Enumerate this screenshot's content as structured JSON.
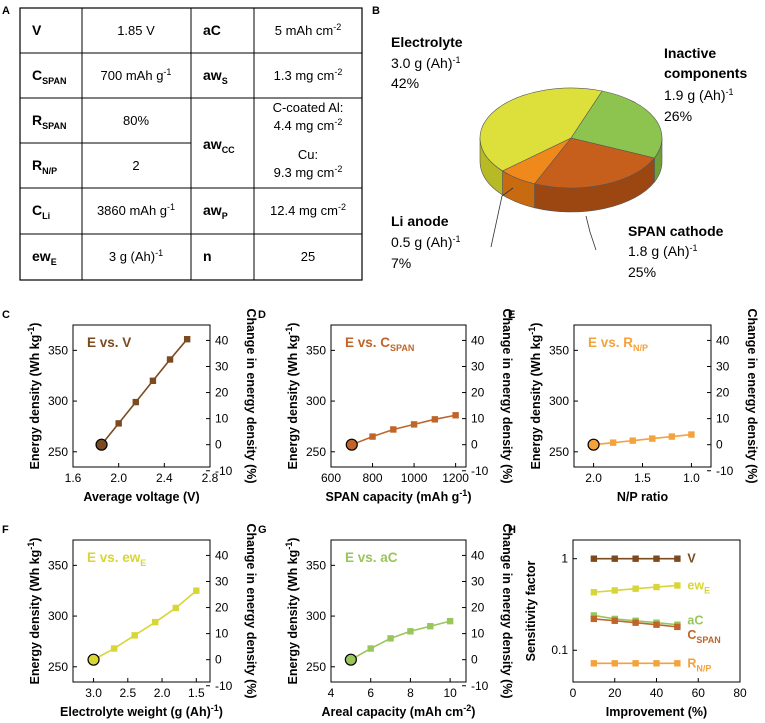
{
  "panel_letters": [
    "A",
    "B",
    "C",
    "D",
    "E",
    "F",
    "G",
    "H"
  ],
  "colors": {
    "V": "#7b4a1e",
    "C_SPAN": "#c0642a",
    "R_NP": "#f4a23c",
    "ew_E": "#d8d636",
    "aC": "#99c65a",
    "dark": "#6b3a14"
  },
  "table": {
    "rows": [
      {
        "p1": "V",
        "s1": "",
        "v1": "1.85 V",
        "p2": "aC",
        "s2": "",
        "v2": "5 mAh cm",
        "v2sup": "-2"
      },
      {
        "p1": "C",
        "s1": "SPAN",
        "v1": "700 mAh g",
        "v1sup": "-1",
        "p2": "aw",
        "s2": "S",
        "v2": "1.3 mg cm",
        "v2sup": "-2"
      },
      {
        "p1": "R",
        "s1": "SPAN",
        "v1": "80%"
      },
      {
        "p1": "R",
        "s1": "N/P",
        "v1": "2"
      },
      {
        "p1": "C",
        "s1": "Li",
        "v1": "3860 mAh g",
        "v1sup": "-1",
        "p2": "aw",
        "s2": "P",
        "v2": "12.4 mg cm",
        "v2sup": "-2"
      },
      {
        "p1": "ew",
        "s1": "E",
        "v1": "3 g (Ah)",
        "v1sup": "-1",
        "p2": "n",
        "s2": "",
        "v2": "25"
      }
    ],
    "awcc": {
      "p": "aw",
      "s": "CC",
      "a1": "C-coated Al:",
      "a2": "4.4 mg cm",
      "a2sup": "-2",
      "b1": "Cu:",
      "b2": "9.3 mg cm",
      "b2sup": "-2"
    }
  },
  "pie": {
    "electrolyte": {
      "name": "Electrolyte",
      "value": "3.0 g (Ah)",
      "sup": "-1",
      "pct": "42%",
      "fraction": 0.42
    },
    "inactive": {
      "name1": "Inactive",
      "name2": "components",
      "value": "1.9 g (Ah)",
      "sup": "-1",
      "pct": "26%",
      "fraction": 0.26
    },
    "span": {
      "name": "SPAN cathode",
      "value": "1.8 g (Ah)",
      "sup": "-1",
      "pct": "25%",
      "fraction": 0.25
    },
    "li": {
      "name": "Li anode",
      "value": "0.5 g (Ah)",
      "sup": "-1",
      "pct": "7%",
      "fraction": 0.07
    }
  },
  "chart_data": [
    {
      "type": "line",
      "panel": "C",
      "title": "E vs. V",
      "xlabel": "Average voltage (V)",
      "ylabel": "Energy density (Wh kg",
      "ylabel_sup": "-1",
      "ylabel_end": ")",
      "y2label": "Change in energy density (%)",
      "x": [
        1.85,
        2.0,
        2.15,
        2.3,
        2.45,
        2.6
      ],
      "y": [
        257,
        278,
        299,
        320,
        341,
        361
      ],
      "xlim": [
        1.6,
        2.8
      ],
      "xticks": [
        "1.6",
        "2.0",
        "2.4",
        "2.8"
      ],
      "xtick_vals": [
        1.6,
        2.0,
        2.4,
        2.8
      ],
      "ylim": [
        235,
        375
      ],
      "yticks": [
        "250",
        "300",
        "350"
      ],
      "ytick_vals": [
        250,
        300,
        350
      ],
      "y2ticks": [
        "-10",
        "0",
        "10",
        "20",
        "30",
        "40"
      ],
      "y2tick_vals": [
        -10,
        0,
        10,
        20,
        30,
        40
      ],
      "color": "#7b4a1e",
      "baseline": {
        "x": 1.85,
        "y": 257
      }
    },
    {
      "type": "line",
      "panel": "D",
      "title": "E vs. C",
      "title_sub": "SPAN",
      "xlabel": "SPAN capacity (mAh g",
      "xlabel_sup": "-1",
      "xlabel_end": ")",
      "ylabel": "Energy density (Wh kg",
      "ylabel_sup": "-1",
      "ylabel_end": ")",
      "y2label": "Change in energy density (%)",
      "x": [
        700,
        800,
        900,
        1000,
        1100,
        1200
      ],
      "y": [
        257,
        265,
        272,
        277,
        282,
        286
      ],
      "xlim": [
        600,
        1250
      ],
      "xticks": [
        "600",
        "800",
        "1000",
        "1200"
      ],
      "xtick_vals": [
        600,
        800,
        1000,
        1200
      ],
      "ylim": [
        235,
        375
      ],
      "yticks": [
        "250",
        "300",
        "350"
      ],
      "ytick_vals": [
        250,
        300,
        350
      ],
      "y2ticks": [
        "-10",
        "0",
        "10",
        "20",
        "30",
        "40"
      ],
      "y2tick_vals": [
        -10,
        0,
        10,
        20,
        30,
        40
      ],
      "color": "#c0642a",
      "baseline": {
        "x": 700,
        "y": 257
      }
    },
    {
      "type": "line",
      "panel": "E",
      "title": "E vs. R",
      "title_sub": "N/P",
      "xlabel": "N/P ratio",
      "ylabel": "Energy density (Wh kg",
      "ylabel_sup": "-1",
      "ylabel_end": ")",
      "y2label": "Change in energy density (%)",
      "x": [
        2.0,
        1.8,
        1.6,
        1.4,
        1.2,
        1.0
      ],
      "y": [
        257,
        259,
        261,
        263,
        265,
        267
      ],
      "xlim": [
        2.2,
        0.8
      ],
      "xticks": [
        "2.0",
        "1.5",
        "1.0"
      ],
      "xtick_vals": [
        2.0,
        1.5,
        1.0
      ],
      "ylim": [
        235,
        375
      ],
      "yticks": [
        "250",
        "300",
        "350"
      ],
      "ytick_vals": [
        250,
        300,
        350
      ],
      "y2ticks": [
        "-10",
        "0",
        "10",
        "20",
        "30",
        "40"
      ],
      "y2tick_vals": [
        -10,
        0,
        10,
        20,
        30,
        40
      ],
      "color": "#f4a23c",
      "baseline": {
        "x": 2.0,
        "y": 257
      }
    },
    {
      "type": "line",
      "panel": "F",
      "title": "E vs. ew",
      "title_sub": "E",
      "xlabel": "Electrolyte weight (g (Ah)",
      "xlabel_sup": "-1",
      "xlabel_end": ")",
      "ylabel": "Energy density (Wh kg",
      "ylabel_sup": "-1",
      "ylabel_end": ")",
      "y2label": "Change in energy density (%)",
      "x": [
        3.0,
        2.7,
        2.4,
        2.1,
        1.8,
        1.5
      ],
      "y": [
        257,
        268,
        281,
        294,
        308,
        325
      ],
      "xlim": [
        3.3,
        1.3
      ],
      "xticks": [
        "3.0",
        "2.5",
        "2.0",
        "1.5"
      ],
      "xtick_vals": [
        3.0,
        2.5,
        2.0,
        1.5
      ],
      "ylim": [
        235,
        375
      ],
      "yticks": [
        "250",
        "300",
        "350"
      ],
      "ytick_vals": [
        250,
        300,
        350
      ],
      "y2ticks": [
        "-10",
        "0",
        "10",
        "20",
        "30",
        "40"
      ],
      "y2tick_vals": [
        -10,
        0,
        10,
        20,
        30,
        40
      ],
      "color": "#d8d636",
      "baseline": {
        "x": 3.0,
        "y": 257
      }
    },
    {
      "type": "line",
      "panel": "G",
      "title": "E vs. aC",
      "xlabel": "Areal capacity (mAh cm",
      "xlabel_sup": "-2",
      "xlabel_end": ")",
      "ylabel": "Energy density (Wh kg",
      "ylabel_sup": "-1",
      "ylabel_end": ")",
      "y2label": "Change in energy density (%)",
      "x": [
        5,
        6,
        7,
        8,
        9,
        10
      ],
      "y": [
        257,
        268,
        278,
        285,
        290,
        295
      ],
      "xlim": [
        4,
        10.8
      ],
      "xticks": [
        "4",
        "6",
        "8",
        "10"
      ],
      "xtick_vals": [
        4,
        6,
        8,
        10
      ],
      "ylim": [
        235,
        375
      ],
      "yticks": [
        "250",
        "300",
        "350"
      ],
      "ytick_vals": [
        250,
        300,
        350
      ],
      "y2ticks": [
        "-10",
        "0",
        "10",
        "20",
        "30",
        "40"
      ],
      "y2tick_vals": [
        -10,
        0,
        10,
        20,
        30,
        40
      ],
      "color": "#99c65a",
      "baseline": {
        "x": 5,
        "y": 257
      }
    },
    {
      "type": "line",
      "panel": "H",
      "xlabel": "Improvement (%)",
      "ylabel": "Sensitivity factor",
      "xlim": [
        0,
        80
      ],
      "xticks": [
        "0",
        "20",
        "40",
        "60",
        "80"
      ],
      "xtick_vals": [
        0,
        20,
        40,
        60,
        80
      ],
      "yscale": "log",
      "ylim": [
        0.045,
        1.6
      ],
      "yticks": [
        "1",
        "0.1"
      ],
      "ytick_vals": [
        1,
        0.1
      ],
      "series": [
        {
          "name": "V",
          "x": [
            10,
            20,
            30,
            40,
            50
          ],
          "values": [
            1.0,
            1.0,
            1.0,
            1.0,
            1.0
          ],
          "color": "#7b4a1e"
        },
        {
          "name": "ew",
          "sub": "E",
          "x": [
            10,
            20,
            30,
            40,
            50
          ],
          "values": [
            0.43,
            0.45,
            0.47,
            0.49,
            0.51
          ],
          "color": "#d8d636"
        },
        {
          "name": "aC",
          "x": [
            10,
            20,
            30,
            40,
            50
          ],
          "values": [
            0.24,
            0.22,
            0.21,
            0.2,
            0.19
          ],
          "color": "#99c65a"
        },
        {
          "name": "C",
          "sub": "SPAN",
          "x": [
            10,
            20,
            30,
            40,
            50
          ],
          "values": [
            0.22,
            0.21,
            0.2,
            0.19,
            0.18
          ],
          "color": "#c0642a"
        },
        {
          "name": "R",
          "sub": "N/P",
          "x": [
            10,
            20,
            30,
            40,
            50
          ],
          "values": [
            0.072,
            0.072,
            0.072,
            0.072,
            0.072
          ],
          "color": "#f4a23c"
        }
      ]
    }
  ]
}
